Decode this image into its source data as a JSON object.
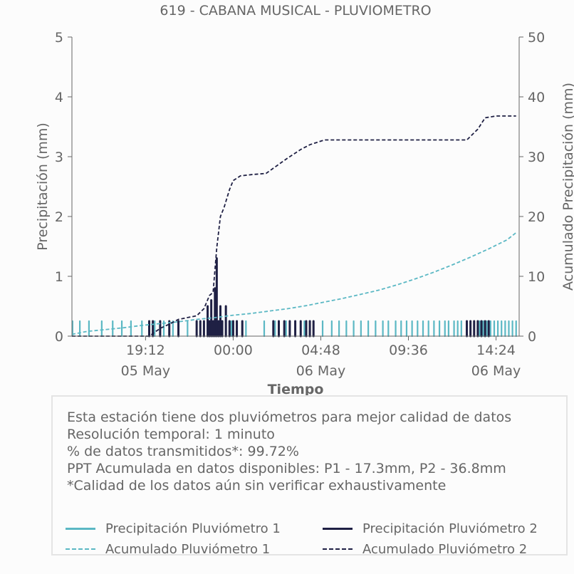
{
  "chart_data": {
    "type": "line",
    "title": "619 - CABANA MUSICAL - PLUVIOMETRO",
    "xlabel": "Tiempo",
    "ylabel": "Precipitación (mm)",
    "y2label": "Acumulado Precipitación (mm)",
    "ylim": [
      0,
      5
    ],
    "y2lim": [
      0,
      50
    ],
    "yticks": [
      "0",
      "1",
      "2",
      "3",
      "4",
      "5"
    ],
    "y2ticks": [
      "0",
      "10",
      "20",
      "30",
      "40",
      "50"
    ],
    "xlim": [
      "2024-05-05T15:10",
      "2024-05-06T15:40"
    ],
    "xticks": [
      {
        "time": "2024-05-05T19:12",
        "label": "19:12",
        "date": "05 May"
      },
      {
        "time": "2024-05-06T00:00",
        "label": "00:00",
        "date": ""
      },
      {
        "time": "2024-05-06T04:48",
        "label": "04:48",
        "date": "06 May"
      },
      {
        "time": "2024-05-06T09:36",
        "label": "09:36",
        "date": ""
      },
      {
        "time": "2024-05-06T14:24",
        "label": "14:24",
        "date": "06 May"
      }
    ],
    "colors": {
      "p1": "#5bb8c4",
      "p2": "#1f2044"
    },
    "grid": false,
    "legend_position": "bottom",
    "series": [
      {
        "name": "Precipitación Pluviómetro 1",
        "axis": "left",
        "style": "bars",
        "x": [
          "2024-05-05T15:12",
          "2024-05-05T15:36",
          "2024-05-05T16:06",
          "2024-05-05T16:48",
          "2024-05-05T17:24",
          "2024-05-05T17:54",
          "2024-05-05T18:24",
          "2024-05-05T19:00",
          "2024-05-05T19:42",
          "2024-05-05T20:12",
          "2024-05-05T20:42",
          "2024-05-05T21:30",
          "2024-05-05T22:24",
          "2024-05-05T23:06",
          "2024-05-05T23:54",
          "2024-05-06T00:42",
          "2024-05-06T01:42",
          "2024-05-06T02:18",
          "2024-05-06T02:54",
          "2024-05-06T03:24",
          "2024-05-06T03:54",
          "2024-05-06T04:24",
          "2024-05-06T04:54",
          "2024-05-06T05:24",
          "2024-05-06T05:48",
          "2024-05-06T06:12",
          "2024-05-06T06:36",
          "2024-05-06T07:00",
          "2024-05-06T07:24",
          "2024-05-06T07:48",
          "2024-05-06T08:12",
          "2024-05-06T08:30",
          "2024-05-06T08:54",
          "2024-05-06T09:12",
          "2024-05-06T09:30",
          "2024-05-06T09:48",
          "2024-05-06T10:06",
          "2024-05-06T10:24",
          "2024-05-06T10:42",
          "2024-05-06T11:00",
          "2024-05-06T11:18",
          "2024-05-06T11:36",
          "2024-05-06T11:48",
          "2024-05-06T12:06",
          "2024-05-06T12:18",
          "2024-05-06T12:30",
          "2024-05-06T12:48",
          "2024-05-06T13:00",
          "2024-05-06T13:12",
          "2024-05-06T13:30",
          "2024-05-06T13:42",
          "2024-05-06T13:54",
          "2024-05-06T14:06",
          "2024-05-06T14:18",
          "2024-05-06T14:30",
          "2024-05-06T14:42",
          "2024-05-06T14:54",
          "2024-05-06T15:06",
          "2024-05-06T15:18",
          "2024-05-06T15:30"
        ],
        "values": [
          0.25,
          0.25,
          0.25,
          0.25,
          0.25,
          0.25,
          0.25,
          0.25,
          0.25,
          0.25,
          0.25,
          0.25,
          0.25,
          0.25,
          0.25,
          0.25,
          0.25,
          0.25,
          0.25,
          0.25,
          0.25,
          0.25,
          0.25,
          0.25,
          0.25,
          0.25,
          0.25,
          0.25,
          0.25,
          0.25,
          0.25,
          0.25,
          0.25,
          0.25,
          0.25,
          0.25,
          0.25,
          0.25,
          0.25,
          0.25,
          0.25,
          0.25,
          0.25,
          0.25,
          0.25,
          0.25,
          0.25,
          0.25,
          0.25,
          0.25,
          0.25,
          0.25,
          0.25,
          0.25,
          0.25,
          0.25,
          0.25,
          0.25,
          0.25,
          0.25
        ]
      },
      {
        "name": "Precipitación Pluviómetro 2",
        "axis": "left",
        "style": "bars",
        "x": [
          "2024-05-05T19:24",
          "2024-05-05T19:36",
          "2024-05-05T20:00",
          "2024-05-05T20:30",
          "2024-05-05T21:00",
          "2024-05-05T22:00",
          "2024-05-05T22:12",
          "2024-05-05T22:24",
          "2024-05-05T22:36",
          "2024-05-05T22:42",
          "2024-05-05T22:48",
          "2024-05-05T22:54",
          "2024-05-05T23:00",
          "2024-05-05T23:06",
          "2024-05-05T23:12",
          "2024-05-05T23:18",
          "2024-05-05T23:24",
          "2024-05-05T23:36",
          "2024-05-05T23:48",
          "2024-05-06T00:00",
          "2024-05-06T00:12",
          "2024-05-06T00:30",
          "2024-05-06T02:12",
          "2024-05-06T02:30",
          "2024-05-06T02:48",
          "2024-05-06T03:06",
          "2024-05-06T03:24",
          "2024-05-06T03:42",
          "2024-05-06T04:00",
          "2024-05-06T04:12",
          "2024-05-06T04:24",
          "2024-05-06T12:48",
          "2024-05-06T13:00",
          "2024-05-06T13:12",
          "2024-05-06T13:24",
          "2024-05-06T13:36",
          "2024-05-06T13:48",
          "2024-05-06T14:00"
        ],
        "values": [
          0.25,
          0.25,
          0.25,
          0.25,
          0.25,
          0.25,
          0.25,
          0.25,
          0.5,
          0.25,
          0.6,
          0.25,
          0.8,
          1.3,
          0.25,
          0.5,
          0.25,
          0.5,
          0.25,
          0.25,
          0.25,
          0.25,
          0.25,
          0.25,
          0.25,
          0.25,
          0.25,
          0.25,
          0.25,
          0.25,
          0.25,
          0.25,
          0.25,
          0.25,
          0.25,
          0.25,
          0.25,
          0.25
        ]
      },
      {
        "name": "Acumulado Pluviómetro 1",
        "axis": "right",
        "style": "dashed",
        "x": [
          "2024-05-05T15:10",
          "2024-05-05T16:00",
          "2024-05-05T17:00",
          "2024-05-05T18:00",
          "2024-05-05T19:00",
          "2024-05-05T20:00",
          "2024-05-05T21:00",
          "2024-05-05T22:00",
          "2024-05-05T23:00",
          "2024-05-06T00:00",
          "2024-05-06T01:00",
          "2024-05-06T02:00",
          "2024-05-06T03:00",
          "2024-05-06T04:00",
          "2024-05-06T05:00",
          "2024-05-06T06:00",
          "2024-05-06T07:00",
          "2024-05-06T08:00",
          "2024-05-06T09:00",
          "2024-05-06T10:00",
          "2024-05-06T11:00",
          "2024-05-06T12:00",
          "2024-05-06T13:00",
          "2024-05-06T14:00",
          "2024-05-06T15:00",
          "2024-05-06T15:30"
        ],
        "values": [
          0.3,
          0.8,
          1.1,
          1.4,
          1.8,
          2.1,
          2.4,
          2.8,
          3.1,
          3.5,
          3.8,
          4.2,
          4.6,
          5.1,
          5.7,
          6.3,
          7.0,
          7.7,
          8.6,
          9.6,
          10.7,
          11.9,
          13.2,
          14.6,
          16.1,
          17.3
        ]
      },
      {
        "name": "Acumulado Pluviómetro 2",
        "axis": "right",
        "style": "dashed",
        "x": [
          "2024-05-05T15:10",
          "2024-05-05T19:24",
          "2024-05-05T20:00",
          "2024-05-05T20:30",
          "2024-05-05T21:00",
          "2024-05-05T22:00",
          "2024-05-05T22:24",
          "2024-05-05T22:42",
          "2024-05-05T22:54",
          "2024-05-05T23:06",
          "2024-05-05T23:18",
          "2024-05-05T23:30",
          "2024-05-05T23:48",
          "2024-05-06T00:00",
          "2024-05-06T00:24",
          "2024-05-06T01:00",
          "2024-05-06T01:48",
          "2024-05-06T02:24",
          "2024-05-06T03:00",
          "2024-05-06T03:42",
          "2024-05-06T04:12",
          "2024-05-06T05:00",
          "2024-05-06T08:00",
          "2024-05-06T12:48",
          "2024-05-06T13:24",
          "2024-05-06T13:48",
          "2024-05-06T14:24",
          "2024-05-06T15:30"
        ],
        "values": [
          0,
          0,
          1.3,
          2.0,
          2.8,
          3.4,
          4.6,
          6.8,
          7.3,
          14.8,
          20.0,
          21.5,
          24.5,
          26.0,
          26.8,
          27.0,
          27.2,
          28.5,
          29.8,
          31.2,
          32.0,
          32.8,
          32.8,
          32.8,
          34.6,
          36.5,
          36.8,
          36.8
        ]
      }
    ]
  },
  "info": {
    "lines": [
      "Esta estación tiene dos pluviómetros para mejor calidad de datos",
      "Resolución temporal: 1 minuto",
      "% de datos transmitidos*: 99.72%",
      "PPT Acumulada en datos disponibles: P1 - 17.3mm, P2 - 36.8mm",
      "*Calidad de los datos aún sin verificar exhaustivamente"
    ]
  },
  "legend": [
    {
      "label": "Precipitación Pluviómetro 1",
      "color": "#5bb8c4",
      "style": "solid"
    },
    {
      "label": "Precipitación Pluviómetro 2",
      "color": "#1f2044",
      "style": "solid"
    },
    {
      "label": "Acumulado Pluviómetro 1",
      "color": "#5bb8c4",
      "style": "dashed"
    },
    {
      "label": "Acumulado Pluviómetro 2",
      "color": "#1f2044",
      "style": "dashed"
    }
  ]
}
